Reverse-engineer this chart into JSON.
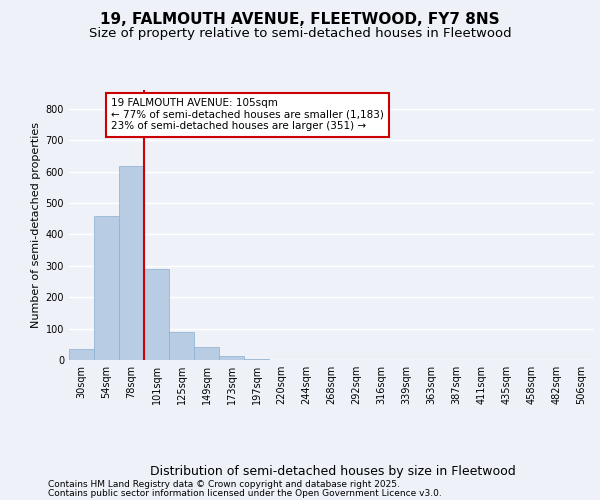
{
  "title1": "19, FALMOUTH AVENUE, FLEETWOOD, FY7 8NS",
  "title2": "Size of property relative to semi-detached houses in Fleetwood",
  "xlabel": "Distribution of semi-detached houses by size in Fleetwood",
  "ylabel": "Number of semi-detached properties",
  "categories": [
    "30sqm",
    "54sqm",
    "78sqm",
    "101sqm",
    "125sqm",
    "149sqm",
    "173sqm",
    "197sqm",
    "220sqm",
    "244sqm",
    "268sqm",
    "292sqm",
    "316sqm",
    "339sqm",
    "363sqm",
    "387sqm",
    "411sqm",
    "435sqm",
    "458sqm",
    "482sqm",
    "506sqm"
  ],
  "values": [
    35,
    458,
    618,
    290,
    90,
    40,
    12,
    2,
    0,
    0,
    0,
    0,
    0,
    0,
    0,
    0,
    0,
    0,
    0,
    0,
    0
  ],
  "bar_color": "#b8cce4",
  "bar_edge_color": "#8aafd0",
  "vline_color": "#cc0000",
  "annotation_title": "19 FALMOUTH AVENUE: 105sqm",
  "annotation_line1": "← 77% of semi-detached houses are smaller (1,183)",
  "annotation_line2": "23% of semi-detached houses are larger (351) →",
  "annotation_box_color": "#cc0000",
  "ylim": [
    0,
    860
  ],
  "yticks": [
    0,
    100,
    200,
    300,
    400,
    500,
    600,
    700,
    800
  ],
  "footnote1": "Contains HM Land Registry data © Crown copyright and database right 2025.",
  "footnote2": "Contains public sector information licensed under the Open Government Licence v3.0.",
  "bg_color": "#eef2f8",
  "plot_bg_color": "#eef2f8",
  "grid_color": "#ffffff",
  "title1_fontsize": 11,
  "title2_fontsize": 9.5,
  "xlabel_fontsize": 9,
  "ylabel_fontsize": 8,
  "tick_fontsize": 7,
  "annotation_fontsize": 7.5,
  "footnote_fontsize": 6.5,
  "vline_bar_index": 3
}
